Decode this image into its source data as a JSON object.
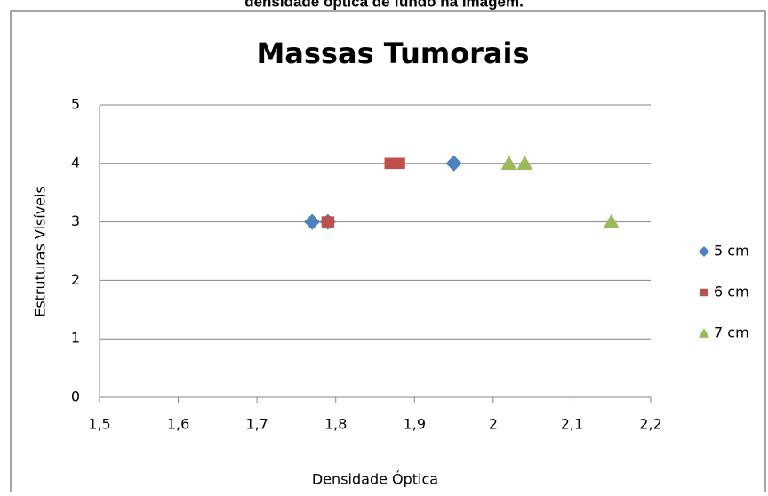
{
  "header": "densidade óptica de fundo na  imagem.",
  "chart_data": {
    "type": "scatter",
    "title": "Massas Tumorais",
    "xlabel": "Densidade Óptica",
    "ylabel": "Estruturas Visíveis",
    "xlim": [
      1.5,
      2.2
    ],
    "xticks": [
      {
        "value": 1.5,
        "label": "1,5"
      },
      {
        "value": 1.6,
        "label": "1,6"
      },
      {
        "value": 1.7,
        "label": "1,7"
      },
      {
        "value": 1.8,
        "label": "1,8"
      },
      {
        "value": 1.9,
        "label": "1,9"
      },
      2,
      {
        "value": 2.1,
        "label": "2,1"
      },
      {
        "value": 2.2,
        "label": "2,2"
      }
    ],
    "ylim": [
      0,
      5
    ],
    "yticks": [
      0,
      1,
      2,
      3,
      4,
      5
    ],
    "grid": true,
    "legend": "right",
    "series": [
      {
        "name": "5 cm",
        "color": "#4f81bd",
        "marker": "diamond",
        "x": [
          1.77,
          1.79,
          1.95
        ],
        "values": [
          3,
          3,
          4
        ]
      },
      {
        "name": "6 cm",
        "color": "#c0504d",
        "marker": "square",
        "x": [
          1.79,
          1.87,
          1.88
        ],
        "values": [
          3,
          4,
          4
        ]
      },
      {
        "name": "7 cm",
        "color": "#9bbb59",
        "marker": "triangle",
        "x": [
          2.02,
          2.04,
          2.15
        ],
        "values": [
          4,
          4,
          3
        ]
      }
    ]
  }
}
